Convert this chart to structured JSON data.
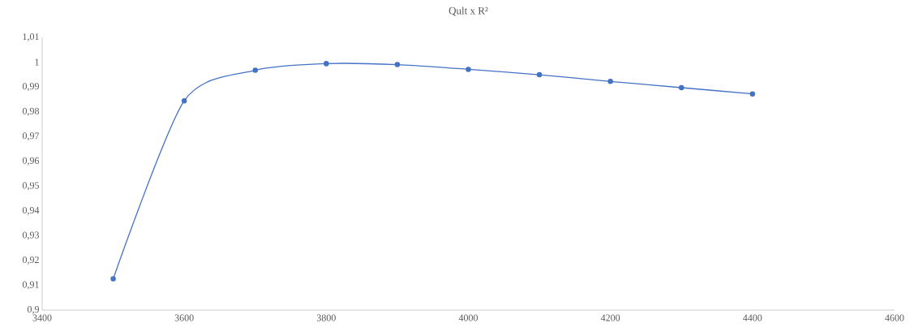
{
  "chart_data": {
    "type": "line",
    "title": "Qult x R²",
    "x": [
      3500,
      3600,
      3700,
      3800,
      3900,
      4000,
      4100,
      4200,
      4300,
      4400
    ],
    "series": [
      {
        "color": "#4472c4",
        "values": [
          0.9126,
          0.9844,
          0.9967,
          0.9994,
          0.999,
          0.9971,
          0.9949,
          0.9922,
          0.9897,
          0.9872
        ]
      }
    ],
    "xlim": [
      3400,
      4600
    ],
    "ylim": [
      0.9,
      1.01
    ],
    "xticks": [
      3400,
      3600,
      3800,
      4000,
      4200,
      4400,
      4600
    ],
    "yticks": [
      {
        "value": 0.9,
        "label": "0,9"
      },
      {
        "value": 0.91,
        "label": "0,91"
      },
      {
        "value": 0.92,
        "label": "0,92"
      },
      {
        "value": 0.93,
        "label": "0,93"
      },
      {
        "value": 0.94,
        "label": "0,94"
      },
      {
        "value": 0.95,
        "label": "0,95"
      },
      {
        "value": 0.96,
        "label": "0,96"
      },
      {
        "value": 0.97,
        "label": "0,97"
      },
      {
        "value": 0.98,
        "label": "0,98"
      },
      {
        "value": 0.99,
        "label": "0,99"
      },
      1,
      {
        "value": 1.01,
        "label": "1,01"
      }
    ],
    "marker": "circle",
    "line_style": "solid"
  }
}
